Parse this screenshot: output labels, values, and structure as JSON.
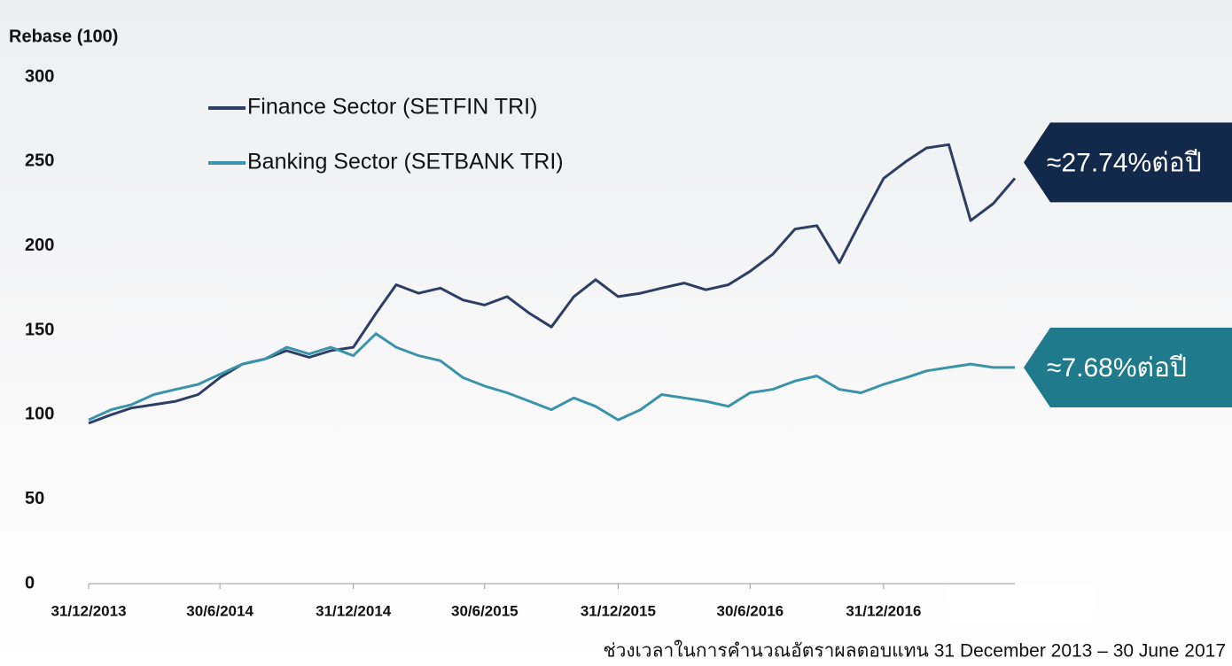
{
  "chart_data": {
    "type": "line",
    "y_label": "Rebase (100)",
    "footnote": "ช่วงเวลาในการคำนวณอัตราผลตอบแทน 31 December 2013 – 30 June 2017",
    "x": [
      "2013-12-31",
      "2014-01-31",
      "2014-02-28",
      "2014-03-31",
      "2014-04-30",
      "2014-05-31",
      "2014-06-30",
      "2014-07-31",
      "2014-08-31",
      "2014-09-30",
      "2014-10-31",
      "2014-11-30",
      "2014-12-31",
      "2015-01-31",
      "2015-02-28",
      "2015-03-31",
      "2015-04-30",
      "2015-05-31",
      "2015-06-30",
      "2015-07-31",
      "2015-08-31",
      "2015-09-30",
      "2015-10-31",
      "2015-11-30",
      "2015-12-31",
      "2016-01-31",
      "2016-02-29",
      "2016-03-31",
      "2016-04-30",
      "2016-05-31",
      "2016-06-30",
      "2016-07-31",
      "2016-08-31",
      "2016-09-30",
      "2016-10-31",
      "2016-11-30",
      "2016-12-31",
      "2017-01-31",
      "2017-02-28",
      "2017-03-31",
      "2017-04-30",
      "2017-05-31",
      "2017-06-30"
    ],
    "series": [
      {
        "name": "Finance Sector (SETFIN TRI)",
        "color": "#2c3e63",
        "values": [
          95,
          100,
          104,
          106,
          108,
          112,
          122,
          130,
          133,
          138,
          134,
          138,
          140,
          160,
          177,
          172,
          175,
          168,
          165,
          170,
          160,
          152,
          170,
          180,
          170,
          172,
          175,
          178,
          174,
          177,
          185,
          195,
          210,
          212,
          190,
          215,
          240,
          250,
          258,
          260,
          215,
          225,
          240
        ]
      },
      {
        "name": "Banking Sector (SETBANK TRI)",
        "color": "#3a93a8",
        "values": [
          97,
          103,
          106,
          112,
          115,
          118,
          124,
          130,
          133,
          140,
          136,
          140,
          135,
          148,
          140,
          135,
          132,
          122,
          117,
          113,
          108,
          103,
          110,
          105,
          97,
          103,
          112,
          110,
          108,
          105,
          113,
          115,
          120,
          123,
          115,
          113,
          118,
          122,
          126,
          128,
          130,
          128,
          128
        ]
      }
    ],
    "annotations": [
      {
        "text": "≈27.74%ต่อปี",
        "color": "#12294b"
      },
      {
        "text": "≈7.68%ต่อปี",
        "color": "#1f7a8c"
      }
    ],
    "xlim": [
      "2013-12-31",
      "2017-06-30"
    ],
    "xticks": [
      {
        "value": "2013-12-31",
        "label": "31/12/2013"
      },
      {
        "value": "2014-06-30",
        "label": "30/6/2014"
      },
      {
        "value": "2014-12-31",
        "label": "31/12/2014"
      },
      {
        "value": "2015-06-30",
        "label": "30/6/2015"
      },
      {
        "value": "2015-12-31",
        "label": "31/12/2015"
      },
      {
        "value": "2016-06-30",
        "label": "30/6/2016"
      },
      {
        "value": "2016-12-31",
        "label": "31/12/2016"
      }
    ],
    "ylim": [
      0,
      300
    ],
    "yticks": [
      0,
      50,
      100,
      150,
      200,
      250,
      300
    ],
    "legend": "upper left",
    "grid": false
  }
}
